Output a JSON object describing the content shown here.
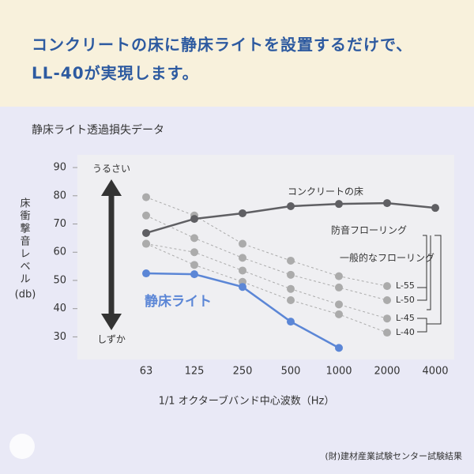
{
  "header": {
    "lines": [
      "コンクリートの床に静床ライトを設置するだけで、",
      "LL-40が実現します。"
    ]
  },
  "chart_data": {
    "type": "line",
    "title": "静床ライト透過損失データ",
    "y_label_lines": [
      "床",
      "衝",
      "撃",
      "音",
      "レ",
      "ベ",
      "ル"
    ],
    "y_unit": "(db)",
    "x_label": "1/1 オクターブバンド中心波数（Hz）",
    "categories": [
      "63",
      "125",
      "250",
      "500",
      "1000",
      "2000",
      "4000"
    ],
    "ylim": [
      22,
      94.5
    ],
    "yticks": [
      30,
      40,
      50,
      60,
      70,
      80,
      90
    ],
    "series": [
      {
        "name": "コンクリートの床",
        "color": "#5f5f63",
        "values": [
          66.8,
          71.8,
          73.8,
          76.3,
          77.1,
          77.4,
          75.7
        ]
      },
      {
        "name": "静床ライト",
        "color": "#5b86d6",
        "values": [
          52.5,
          52.2,
          47.7,
          35.4,
          26.1,
          null,
          null
        ]
      },
      {
        "name": "L-55",
        "color": "#ababab",
        "dashed": true,
        "values": [
          79.5,
          73,
          63,
          57,
          51.5,
          48,
          null
        ]
      },
      {
        "name": "L-50",
        "color": "#ababab",
        "dashed": true,
        "values": [
          73,
          65,
          58,
          52,
          47.5,
          43,
          null
        ]
      },
      {
        "name": "L-45",
        "color": "#ababab",
        "dashed": true,
        "values": [
          63,
          60,
          53.5,
          47,
          41.5,
          36.5,
          null
        ]
      },
      {
        "name": "L-40",
        "color": "#ababab",
        "dashed": true,
        "values": [
          63,
          55.5,
          49.5,
          43,
          38,
          31.5,
          null
        ]
      }
    ],
    "arrow_labels": [
      "うるさい",
      "しずか"
    ],
    "groups": [
      "防音フローリング",
      "一般的なフローリング"
    ],
    "source": "(財)建材産業試験センター試験結果"
  }
}
